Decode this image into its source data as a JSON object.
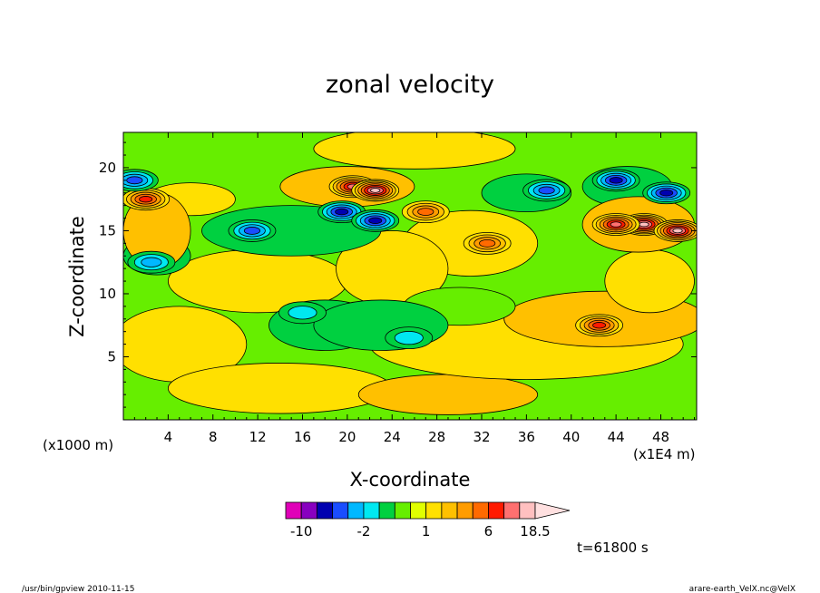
{
  "chart_data": {
    "type": "heatmap",
    "title": "zonal velocity",
    "xlabel": "X-coordinate",
    "ylabel": "Z-coordinate",
    "x_scale_label": "(x1E4 m)",
    "y_scale_label": "(x1000 m)",
    "xlim": [
      0,
      51.2
    ],
    "ylim": [
      0,
      22.8
    ],
    "x_ticks": [
      "4",
      "8",
      "12",
      "16",
      "20",
      "24",
      "28",
      "32",
      "36",
      "40",
      "44",
      "48"
    ],
    "y_ticks": [
      "5",
      "10",
      "15",
      "20"
    ],
    "colorbar": {
      "levels": [
        -12,
        -10,
        -8,
        -6,
        -4,
        -2,
        -1,
        0,
        0.5,
        1,
        1.5,
        2,
        4,
        6,
        10,
        14,
        18.5
      ],
      "colors": [
        "#e000b8",
        "#8800c0",
        "#0000b0",
        "#1a4dff",
        "#00b8ff",
        "#00e8f0",
        "#00d040",
        "#66ee00",
        "#e0ff00",
        "#ffe000",
        "#ffc000",
        "#ff9c00",
        "#ff6a00",
        "#ff1a00",
        "#ff7070",
        "#ffc0c0",
        "#ffe0e0"
      ],
      "tick_labels": [
        "-10",
        "-2",
        "1",
        "6",
        "18.5"
      ]
    },
    "features": [
      {
        "x": 20.5,
        "z": 18.5,
        "value": 6,
        "kind": "max"
      },
      {
        "x": 22.5,
        "z": 18.2,
        "value": 10,
        "kind": "max"
      },
      {
        "x": 19.5,
        "z": 16.5,
        "value": -8,
        "kind": "min"
      },
      {
        "x": 22.5,
        "z": 15.8,
        "value": -8,
        "kind": "min"
      },
      {
        "x": 11.5,
        "z": 15.0,
        "value": -6,
        "kind": "min"
      },
      {
        "x": 44.0,
        "z": 19.0,
        "value": -8,
        "kind": "min"
      },
      {
        "x": 48.5,
        "z": 18.0,
        "value": -8,
        "kind": "min"
      },
      {
        "x": 37.8,
        "z": 18.2,
        "value": -6,
        "kind": "min"
      },
      {
        "x": 46.5,
        "z": 15.5,
        "value": 10,
        "kind": "max"
      },
      {
        "x": 49.5,
        "z": 15.0,
        "value": 10,
        "kind": "max"
      },
      {
        "x": 44.0,
        "z": 15.5,
        "value": 6,
        "kind": "max"
      },
      {
        "x": 42.5,
        "z": 7.5,
        "value": 4,
        "kind": "max"
      },
      {
        "x": 32.5,
        "z": 14.0,
        "value": 2,
        "kind": "max"
      },
      {
        "x": 27.0,
        "z": 16.5,
        "value": 2,
        "kind": "max"
      },
      {
        "x": 25.5,
        "z": 6.5,
        "value": -2,
        "kind": "min"
      },
      {
        "x": 16.0,
        "z": 8.5,
        "value": -2,
        "kind": "min"
      },
      {
        "x": 2.0,
        "z": 17.5,
        "value": 4,
        "kind": "max"
      },
      {
        "x": 1.0,
        "z": 19.0,
        "value": -6,
        "kind": "min"
      },
      {
        "x": 2.5,
        "z": 12.5,
        "value": -4,
        "kind": "min"
      }
    ]
  },
  "time_label": "t=61800 s",
  "footer_left": "/usr/bin/gpview   2010-11-15",
  "footer_right": "arare-earth_VelX.nc@VelX"
}
